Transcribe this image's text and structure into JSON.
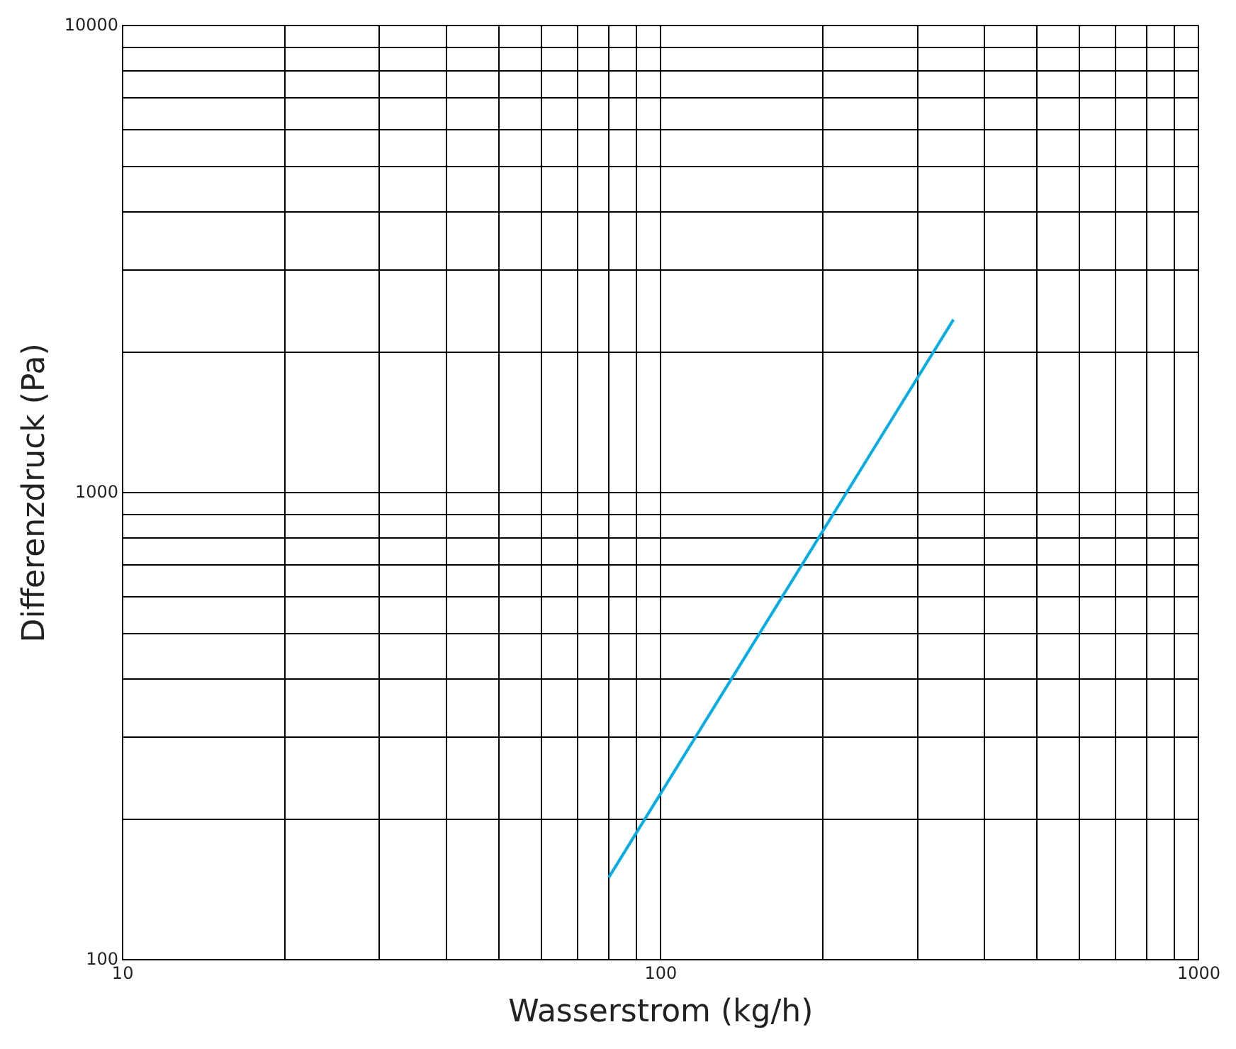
{
  "chart_data": {
    "type": "line",
    "xlabel": "Wasserstrom (kg/h)",
    "ylabel": "Differenzdruck (Pa)",
    "log": "xy",
    "grid": true,
    "marker": "none",
    "line_style": "solid",
    "x": [
      80,
      350
    ],
    "series": [
      {
        "color": "#00aee8",
        "values": [
          150,
          2350
        ]
      }
    ],
    "xlim": [
      10,
      1000
    ],
    "xticks": [
      10,
      {
        "value": 20,
        "label": null
      },
      {
        "value": 30,
        "label": null
      },
      {
        "value": 40,
        "label": null
      },
      {
        "value": 50,
        "label": null
      },
      {
        "value": 60,
        "label": null
      },
      {
        "value": 70,
        "label": null
      },
      {
        "value": 80,
        "label": null
      },
      {
        "value": 90,
        "label": null
      },
      100,
      {
        "value": 200,
        "label": null
      },
      {
        "value": 300,
        "label": null
      },
      {
        "value": 400,
        "label": null
      },
      {
        "value": 500,
        "label": null
      },
      {
        "value": 600,
        "label": null
      },
      {
        "value": 700,
        "label": null
      },
      {
        "value": 800,
        "label": null
      },
      {
        "value": 900,
        "label": null
      },
      1000
    ],
    "ylim": [
      100,
      10000
    ],
    "yticks": [
      100,
      {
        "value": 200,
        "label": null
      },
      {
        "value": 300,
        "label": null
      },
      {
        "value": 400,
        "label": null
      },
      {
        "value": 500,
        "label": null
      },
      {
        "value": 600,
        "label": null
      },
      {
        "value": 700,
        "label": null
      },
      {
        "value": 800,
        "label": null
      },
      {
        "value": 900,
        "label": null
      },
      1000,
      {
        "value": 2000,
        "label": null
      },
      {
        "value": 3000,
        "label": null
      },
      {
        "value": 4000,
        "label": null
      },
      {
        "value": 5000,
        "label": null
      },
      {
        "value": 6000,
        "label": null
      },
      {
        "value": 7000,
        "label": null
      },
      {
        "value": 8000,
        "label": null
      },
      {
        "value": 9000,
        "label": null
      },
      10000
    ]
  }
}
